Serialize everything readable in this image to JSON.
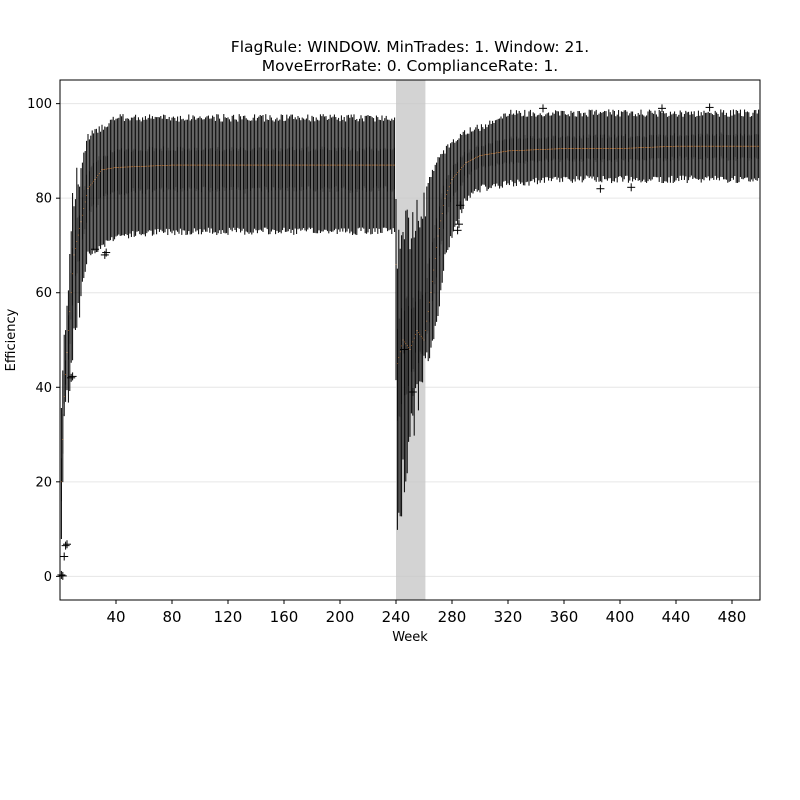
{
  "chart_data": {
    "type": "box",
    "title_line1": "FlagRule: WINDOW. MinTrades: 1. Window: 21.",
    "title_line2": "MoveErrorRate: 0. ComplianceRate: 1.",
    "xlabel": "Week",
    "ylabel": "Efficiency",
    "xlim": [
      0,
      500
    ],
    "ylim": [
      -5,
      105
    ],
    "xticks": [
      40,
      80,
      120,
      160,
      200,
      240,
      280,
      320,
      360,
      400,
      440,
      480
    ],
    "yticks": [
      0,
      20,
      40,
      60,
      80,
      100
    ],
    "ygrid": true,
    "shaded_span": [
      240,
      261
    ],
    "colors": {
      "box": "#000000",
      "median": "#ff7f0e",
      "shade": "#c8c8c8",
      "grid": "#e6e6e6"
    },
    "profile_weeks": [
      1,
      3,
      6,
      10,
      20,
      30,
      40,
      80,
      120,
      160,
      200,
      239,
      241,
      245,
      250,
      255,
      260,
      265,
      270,
      275,
      280,
      290,
      300,
      320,
      360,
      400,
      440,
      480,
      500
    ],
    "median_profile": [
      20,
      38,
      52,
      68,
      82,
      86,
      86.5,
      87,
      87,
      87,
      87,
      87,
      45,
      50,
      48,
      52,
      50,
      60,
      72,
      80,
      84,
      87.5,
      89,
      90,
      90.5,
      90.5,
      91,
      91,
      91
    ],
    "whisker_low_profile": [
      8,
      33,
      40,
      52,
      68,
      70,
      72,
      73,
      73,
      73,
      73,
      73,
      10,
      20,
      28,
      38,
      42,
      48,
      55,
      68,
      72,
      80,
      82,
      83,
      84,
      84,
      84,
      84,
      84
    ],
    "whisker_high_profile": [
      35,
      52,
      65,
      80,
      93,
      95,
      97,
      97,
      97,
      97,
      97,
      97,
      70,
      75,
      72,
      78,
      80,
      85,
      88,
      90,
      92,
      94,
      95,
      98,
      98,
      98,
      98,
      98,
      98
    ],
    "outliers": [
      {
        "x": 1,
        "y": 0.3
      },
      {
        "x": 2,
        "y": 0.1
      },
      {
        "x": 3,
        "y": 4.2
      },
      {
        "x": 4,
        "y": 6.5
      },
      {
        "x": 5,
        "y": 6.8
      },
      {
        "x": 8,
        "y": 42
      },
      {
        "x": 9,
        "y": 42.3
      },
      {
        "x": 25,
        "y": 69.2
      },
      {
        "x": 32,
        "y": 68
      },
      {
        "x": 33,
        "y": 68.5
      },
      {
        "x": 246,
        "y": 48
      },
      {
        "x": 252,
        "y": 39
      },
      {
        "x": 284,
        "y": 73.2
      },
      {
        "x": 285,
        "y": 74.5
      },
      {
        "x": 286,
        "y": 78.5
      },
      {
        "x": 386,
        "y": 82
      },
      {
        "x": 408,
        "y": 82.3
      },
      {
        "x": 464,
        "y": 99.2
      },
      {
        "x": 345,
        "y": 99
      },
      {
        "x": 430,
        "y": 99
      }
    ]
  }
}
